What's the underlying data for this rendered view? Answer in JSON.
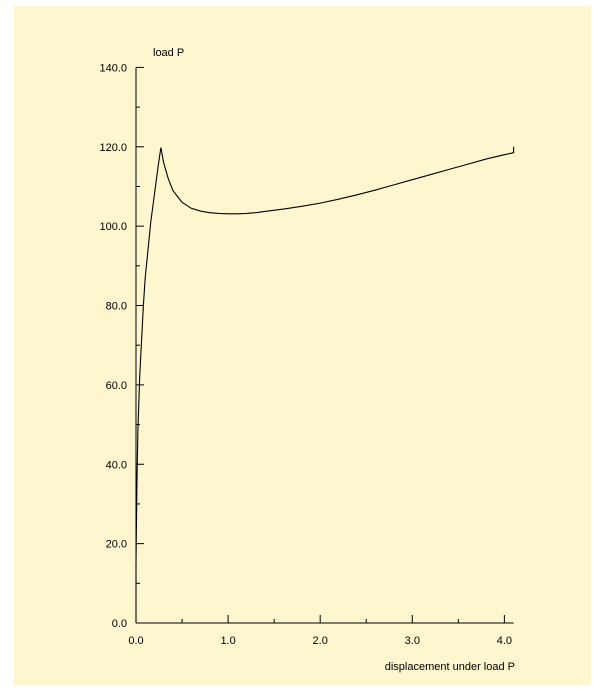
{
  "chart_data": {
    "type": "line",
    "title": "",
    "ylabel": "load P",
    "xlabel": "displacement under load P",
    "xlim": [
      0.0,
      4.1
    ],
    "ylim": [
      0.0,
      140.0
    ],
    "x_ticks": [
      0.0,
      1.0,
      2.0,
      3.0,
      4.0
    ],
    "x_tick_labels": [
      "0.0",
      "1.0",
      "2.0",
      "3.0",
      "4.0"
    ],
    "y_ticks": [
      0.0,
      20.0,
      40.0,
      60.0,
      80.0,
      100.0,
      120.0,
      140.0
    ],
    "y_tick_labels": [
      "0.0",
      "20.0",
      "40.0",
      "60.0",
      "80.0",
      "100.0",
      "120.0",
      "140.0"
    ],
    "grid": false,
    "series": [
      {
        "x": [
          0.0,
          0.0,
          0.01,
          0.02,
          0.04,
          0.06,
          0.08,
          0.1,
          0.13,
          0.16,
          0.2,
          0.24,
          0.27,
          0.3,
          0.35,
          0.4,
          0.5,
          0.6,
          0.7,
          0.8,
          0.9,
          1.0,
          1.1,
          1.2,
          1.3,
          1.4,
          1.6,
          1.8,
          2.0,
          2.2,
          2.4,
          2.6,
          2.8,
          3.0,
          3.2,
          3.4,
          3.6,
          3.8,
          4.0,
          4.1,
          4.1
        ],
        "y": [
          0.0,
          15.0,
          35.0,
          48.0,
          62.0,
          71.0,
          80.0,
          87.0,
          94.0,
          101.0,
          108.0,
          115.0,
          119.8,
          116.0,
          112.0,
          109.0,
          106.0,
          104.5,
          103.8,
          103.4,
          103.2,
          103.1,
          103.1,
          103.2,
          103.4,
          103.7,
          104.3,
          105.0,
          105.8,
          106.8,
          107.9,
          109.1,
          110.4,
          111.7,
          113.0,
          114.3,
          115.6,
          116.9,
          118.0,
          118.5,
          120.0
        ]
      }
    ]
  }
}
